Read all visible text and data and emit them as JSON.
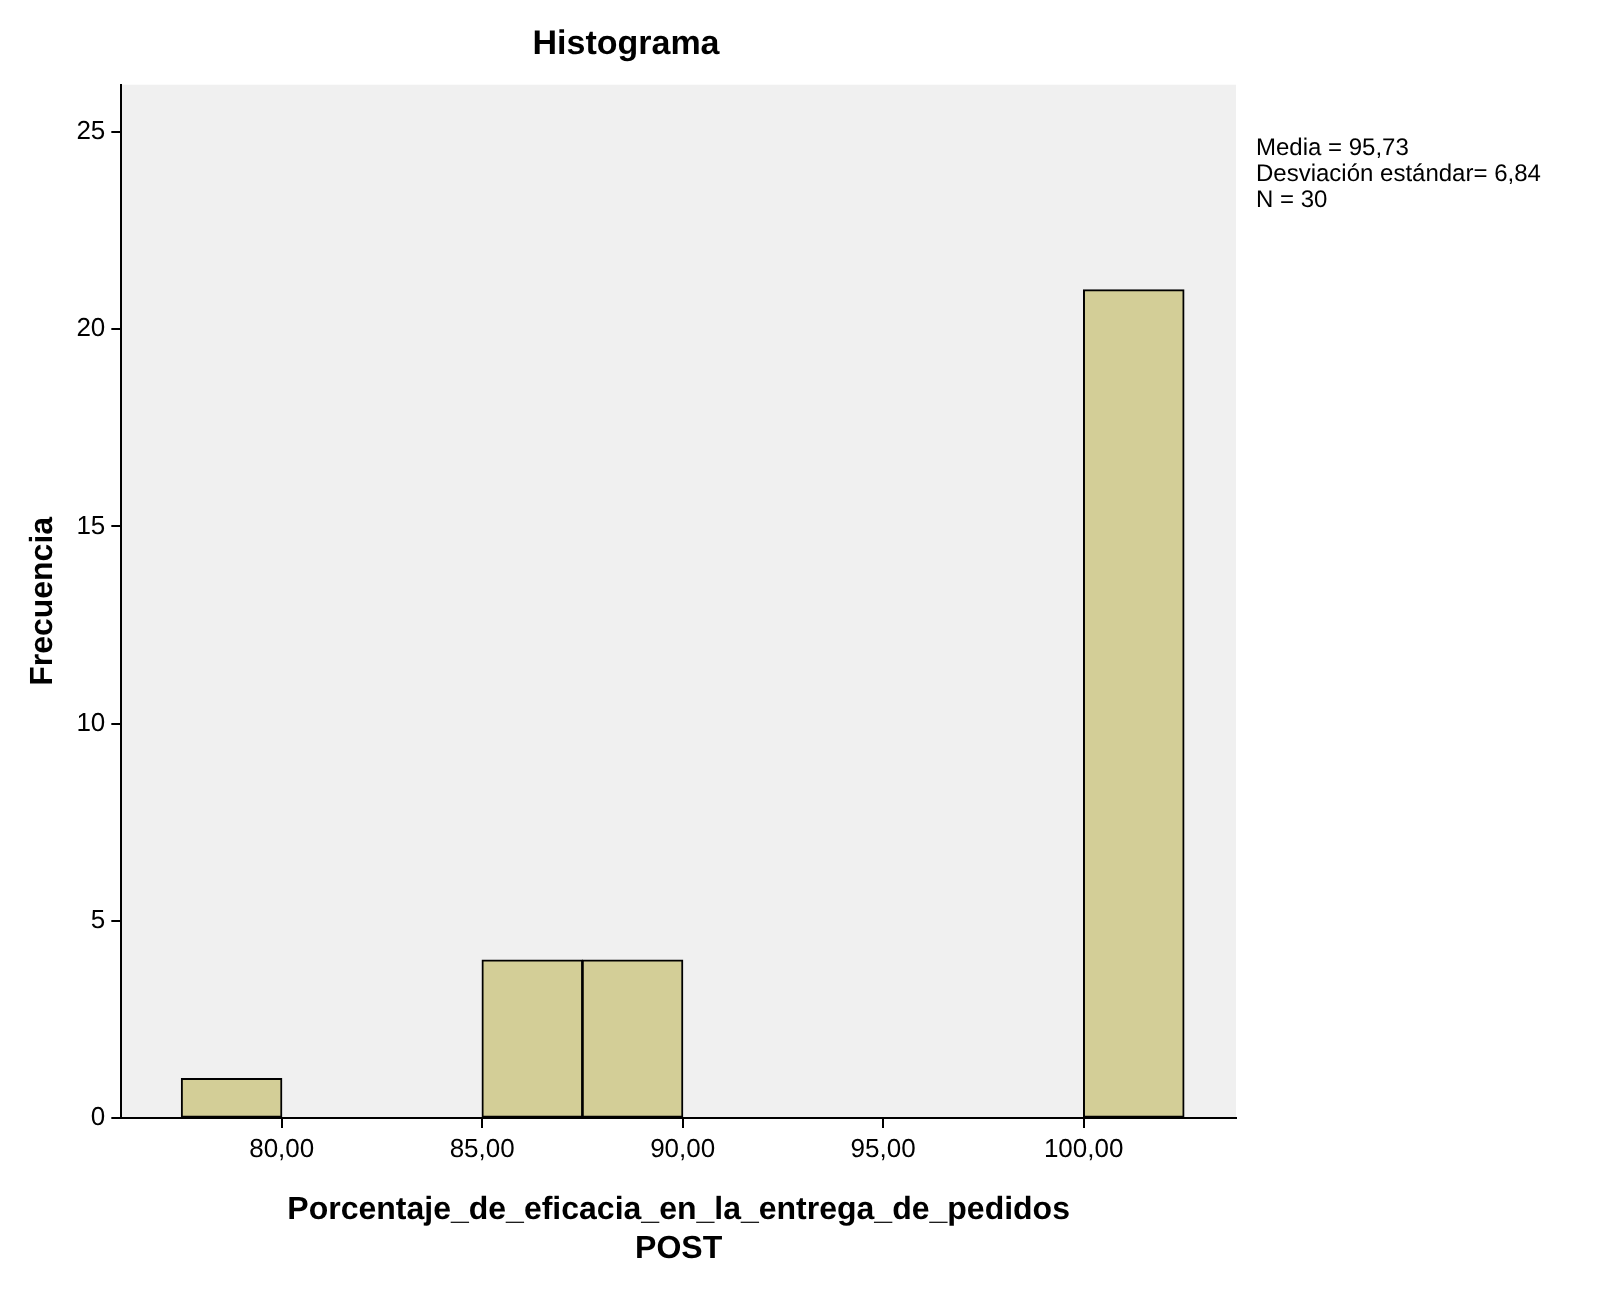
{
  "chart_data": {
    "type": "histogram",
    "title": "Histograma",
    "xlabel": "Porcentaje_de_eficacia_en_la_entrega_de_pedidos\nPOST",
    "ylabel": "Frecuencia",
    "bins": [
      77.5,
      80,
      82.5,
      85,
      87.5,
      90,
      92.5,
      95,
      97.5,
      100,
      102.5
    ],
    "values": [
      1,
      0,
      0,
      4,
      4,
      0,
      0,
      0,
      0,
      21
    ],
    "color": "#d3ce97",
    "xlim": [
      76,
      103.8
    ],
    "xticks": [
      {
        "value": 80,
        "label": "80,00"
      },
      {
        "value": 85,
        "label": "85,00"
      },
      {
        "value": 90,
        "label": "90,00"
      },
      {
        "value": 95,
        "label": "95,00"
      },
      {
        "value": 100,
        "label": "100,00"
      }
    ],
    "ylim": [
      0,
      26.2
    ],
    "yticks": [
      0,
      5,
      10,
      15,
      20,
      25
    ],
    "grid": false,
    "legend": false,
    "annotations": [
      "Media = 95,73",
      "Desviación estándar= 6,84",
      "N = 30"
    ]
  }
}
